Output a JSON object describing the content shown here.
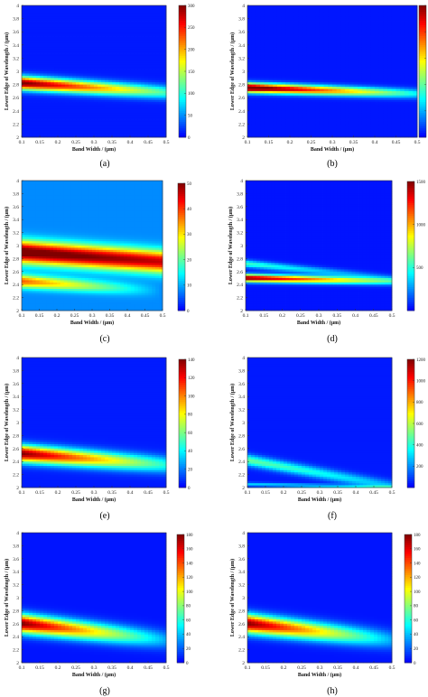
{
  "figure": {
    "panel_count": 8
  },
  "chart_data": [
    {
      "id": "a",
      "type": "heatmap",
      "caption": "(a)",
      "xlabel": "Band Width / (μm)",
      "ylabel": "Lower Edge of Wavelength / (μm)",
      "xlim": [
        0.1,
        0.5
      ],
      "ylim": [
        2,
        4
      ],
      "xticks": [
        "0.1",
        "0.15",
        "0.2",
        "0.25",
        "0.3",
        "0.35",
        "0.4",
        "0.45",
        "0.5"
      ],
      "yticks": [
        "2",
        "2.2",
        "2.4",
        "2.6",
        "2.8",
        "3",
        "3.2",
        "3.4",
        "3.6",
        "3.8",
        "4"
      ],
      "colorbar": {
        "min": 0,
        "max": 300,
        "ticks": [
          "0",
          "50",
          "100",
          "150",
          "200",
          "250",
          "300"
        ]
      },
      "bands": [
        {
          "y_start": 2.82,
          "y_end": 2.68,
          "sigma": 0.07,
          "peak_start": 300,
          "peak_end": 100
        }
      ],
      "background": 10
    },
    {
      "id": "b",
      "type": "heatmap",
      "caption": "(b)",
      "xlabel": "Band Width / (μm)",
      "ylabel": "Lower Edge of Wavelength / (μm)",
      "xlim": [
        0.1,
        0.5
      ],
      "ylim": [
        2,
        4
      ],
      "xticks": [
        "0.1",
        "0.15",
        "0.2",
        "0.25",
        "0.3",
        "0.35",
        "0.4",
        "0.45",
        "0.5"
      ],
      "yticks": [
        "2",
        "2.2",
        "2.4",
        "2.6",
        "2.8",
        "3",
        "3.2",
        "3.4",
        "3.6",
        "3.8",
        "4"
      ],
      "colorbar": {
        "min": 0,
        "max": 500,
        "ticks": [
          "0",
          "100",
          "200",
          "300",
          "400",
          "500"
        ]
      },
      "bands": [
        {
          "y_start": 2.75,
          "y_end": 2.66,
          "sigma": 0.05,
          "peak_start": 550,
          "peak_end": 130
        }
      ],
      "background": 15
    },
    {
      "id": "c",
      "type": "heatmap",
      "caption": "(c)",
      "xlabel": "Band Width / (μm)",
      "ylabel": "Lower Edge of Wavelength / (μm)",
      "xlim": [
        0.1,
        0.5
      ],
      "ylim": [
        2,
        4
      ],
      "xticks": [
        "0.1",
        "0.15",
        "0.2",
        "0.25",
        "0.3",
        "0.35",
        "0.4",
        "0.45",
        "0.5"
      ],
      "yticks": [
        "2",
        "2.2",
        "2.4",
        "2.6",
        "2.8",
        "3",
        "3.2",
        "3.4",
        "3.6",
        "3.8",
        "4"
      ],
      "colorbar": {
        "min": 0,
        "max": 50,
        "ticks": [
          "0",
          "10",
          "20",
          "30",
          "40",
          "50"
        ]
      },
      "bands": [
        {
          "y_start": 2.9,
          "y_end": 2.75,
          "sigma": 0.12,
          "peak_start": 46,
          "peak_end": 38
        },
        {
          "y_start": 2.45,
          "y_end": 2.3,
          "sigma": 0.07,
          "peak_start": 30,
          "peak_end": 0
        }
      ],
      "background": 8
    },
    {
      "id": "d",
      "type": "heatmap",
      "caption": "(d)",
      "xlabel": "Band Width / (μm)",
      "ylabel": "Lower Edge of Wavelength / (μm)",
      "xlim": [
        0.1,
        0.5
      ],
      "ylim": [
        2,
        4
      ],
      "xticks": [
        "0.1",
        "0.15",
        "0.2",
        "0.25",
        "0.3",
        "0.35",
        "0.4",
        "0.45",
        "0.5"
      ],
      "yticks": [
        "2",
        "2.2",
        "2.4",
        "2.6",
        "2.8",
        "3",
        "3.2",
        "3.4",
        "3.6",
        "3.8",
        "4"
      ],
      "colorbar": {
        "min": 0,
        "max": 1500,
        "ticks": [
          "500",
          "1000",
          "1500"
        ]
      },
      "bands": [
        {
          "y_start": 2.5,
          "y_end": 2.45,
          "sigma": 0.04,
          "peak_start": 1500,
          "peak_end": 500
        },
        {
          "y_start": 2.72,
          "y_end": 2.5,
          "sigma": 0.04,
          "peak_start": 500,
          "peak_end": 100
        }
      ],
      "background": 40
    },
    {
      "id": "e",
      "type": "heatmap",
      "caption": "(e)",
      "xlabel": "Band Width / (μm)",
      "ylabel": "Lower Edge of Wavelength / (μm)",
      "xlim": [
        0.1,
        0.5
      ],
      "ylim": [
        2,
        4
      ],
      "xticks": [
        "0.1",
        "0.15",
        "0.2",
        "0.25",
        "0.3",
        "0.35",
        "0.4",
        "0.45",
        "0.5"
      ],
      "yticks": [
        "2",
        "2.2",
        "2.4",
        "2.6",
        "2.8",
        "3",
        "3.2",
        "3.4",
        "3.6",
        "3.8",
        "4"
      ],
      "colorbar": {
        "min": 0,
        "max": 140,
        "ticks": [
          "0",
          "20",
          "40",
          "60",
          "80",
          "100",
          "120",
          "140"
        ]
      },
      "bands": [
        {
          "y_start": 2.52,
          "y_end": 2.35,
          "sigma": 0.09,
          "peak_start": 135,
          "peak_end": 40
        }
      ],
      "background": 5
    },
    {
      "id": "f",
      "type": "heatmap",
      "caption": "(f)",
      "xlabel": "Band Width / (μm)",
      "ylabel": "Lower Edge of Wavelength / (μm)",
      "xlim": [
        0.1,
        0.5
      ],
      "ylim": [
        2,
        4
      ],
      "xticks": [
        "0.1",
        "0.15",
        "0.2",
        "0.25",
        "0.3",
        "0.35",
        "0.4",
        "0.45",
        "0.5"
      ],
      "yticks": [
        "2",
        "2.2",
        "2.4",
        "2.6",
        "2.8",
        "3",
        "3.2",
        "3.4",
        "3.6",
        "3.8",
        "4"
      ],
      "colorbar": {
        "min": 0,
        "max": 1200,
        "ticks": [
          "200",
          "400",
          "600",
          "800",
          "1000",
          "1200"
        ]
      },
      "bands": [
        {
          "y_start": 2.42,
          "y_end": 2.02,
          "sigma": 0.06,
          "peak_start": 450,
          "peak_end": 200
        },
        {
          "y_start": 2.05,
          "y_end": 2.0,
          "sigma": 0.02,
          "peak_start": 250,
          "peak_end": 250
        }
      ],
      "background": 40
    },
    {
      "id": "g",
      "type": "heatmap",
      "caption": "(g)",
      "xlabel": "Band Width / (μm)",
      "ylabel": "Lower Edge of Wavelength / (μm)",
      "xlim": [
        0.1,
        0.5
      ],
      "ylim": [
        2,
        4
      ],
      "xticks": [
        "0.1",
        "0.15",
        "0.2",
        "0.25",
        "0.3",
        "0.35",
        "0.4",
        "0.45",
        "0.5"
      ],
      "yticks": [
        "2",
        "2.2",
        "2.4",
        "2.6",
        "2.8",
        "3",
        "3.2",
        "3.4",
        "3.6",
        "3.8",
        "4"
      ],
      "colorbar": {
        "min": 0,
        "max": 180,
        "ticks": [
          "0",
          "20",
          "40",
          "60",
          "80",
          "100",
          "120",
          "140",
          "160",
          "180"
        ]
      },
      "bands": [
        {
          "y_start": 2.6,
          "y_end": 2.35,
          "sigma": 0.1,
          "peak_start": 175,
          "peak_end": 30
        }
      ],
      "background": 5
    },
    {
      "id": "h",
      "type": "heatmap",
      "caption": "(h)",
      "xlabel": "Band Width / (μm)",
      "ylabel": "Lower Edge of Wavelength / (μm)",
      "xlim": [
        0.1,
        0.5
      ],
      "ylim": [
        2,
        4
      ],
      "xticks": [
        "0.1",
        "0.15",
        "0.2",
        "0.25",
        "0.3",
        "0.35",
        "0.4",
        "0.45",
        "0.5"
      ],
      "yticks": [
        "2",
        "2.2",
        "2.4",
        "2.6",
        "2.8",
        "3",
        "3.2",
        "3.4",
        "3.6",
        "3.8",
        "4"
      ],
      "colorbar": {
        "min": 0,
        "max": 180,
        "ticks": [
          "0",
          "20",
          "40",
          "60",
          "80",
          "100",
          "120",
          "140",
          "160",
          "180"
        ]
      },
      "bands": [
        {
          "y_start": 2.6,
          "y_end": 2.35,
          "sigma": 0.1,
          "peak_start": 175,
          "peak_end": 30
        }
      ],
      "background": 5
    }
  ]
}
